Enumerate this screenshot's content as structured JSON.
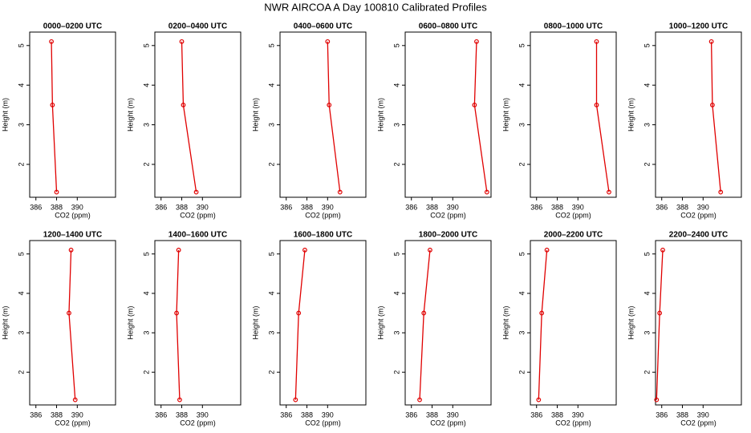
{
  "title": "NWR AIRCOA A  Day 100810  Calibrated Profiles",
  "chart_data": [
    {
      "type": "line",
      "title": "0000–0200 UTC",
      "xlabel": "CO2 (ppm)",
      "ylabel": "Height (m)",
      "color": "#e00000",
      "x": [
        387.5,
        387.6,
        388.0
      ],
      "values": [
        5.1,
        3.5,
        1.3
      ],
      "xlim": [
        385.4,
        393.7
      ],
      "ylim": [
        1.17,
        5.34
      ],
      "xticks": [
        386,
        388,
        390
      ],
      "yticks": [
        2,
        3,
        4,
        5
      ]
    },
    {
      "type": "line",
      "title": "0200–0400 UTC",
      "xlabel": "CO2 (ppm)",
      "ylabel": "Height (m)",
      "color": "#e00000",
      "x": [
        388.0,
        388.15,
        389.4
      ],
      "values": [
        5.1,
        3.5,
        1.3
      ],
      "xlim": [
        385.4,
        393.7
      ],
      "ylim": [
        1.17,
        5.34
      ],
      "xticks": [
        386,
        388,
        390
      ],
      "yticks": [
        2,
        3,
        4,
        5
      ]
    },
    {
      "type": "line",
      "title": "0400–0600 UTC",
      "xlabel": "CO2 (ppm)",
      "ylabel": "Height (m)",
      "color": "#e00000",
      "x": [
        390.0,
        390.15,
        391.2
      ],
      "values": [
        5.1,
        3.5,
        1.3
      ],
      "xlim": [
        385.4,
        393.7
      ],
      "ylim": [
        1.17,
        5.34
      ],
      "xticks": [
        386,
        388,
        390
      ],
      "yticks": [
        2,
        3,
        4,
        5
      ]
    },
    {
      "type": "line",
      "title": "0600–0800 UTC",
      "xlabel": "CO2 (ppm)",
      "ylabel": "Height (m)",
      "color": "#e00000",
      "x": [
        392.3,
        392.1,
        393.3
      ],
      "values": [
        5.1,
        3.5,
        1.3
      ],
      "xlim": [
        385.4,
        393.7
      ],
      "ylim": [
        1.17,
        5.34
      ],
      "xticks": [
        386,
        388,
        390
      ],
      "yticks": [
        2,
        3,
        4,
        5
      ]
    },
    {
      "type": "line",
      "title": "0800–1000 UTC",
      "xlabel": "CO2 (ppm)",
      "ylabel": "Height (m)",
      "color": "#e00000",
      "x": [
        391.8,
        391.8,
        393.0
      ],
      "values": [
        5.1,
        3.5,
        1.3
      ],
      "xlim": [
        385.4,
        393.7
      ],
      "ylim": [
        1.17,
        5.34
      ],
      "xticks": [
        386,
        388,
        390
      ],
      "yticks": [
        2,
        3,
        4,
        5
      ]
    },
    {
      "type": "line",
      "title": "1000–1200 UTC",
      "xlabel": "CO2 (ppm)",
      "ylabel": "Height (m)",
      "color": "#e00000",
      "x": [
        390.8,
        390.9,
        391.7
      ],
      "values": [
        5.1,
        3.5,
        1.3
      ],
      "xlim": [
        385.4,
        393.7
      ],
      "ylim": [
        1.17,
        5.34
      ],
      "xticks": [
        386,
        388,
        390
      ],
      "yticks": [
        2,
        3,
        4,
        5
      ]
    },
    {
      "type": "line",
      "title": "1200–1400 UTC",
      "xlabel": "CO2 (ppm)",
      "ylabel": "Height (m)",
      "color": "#e00000",
      "x": [
        389.4,
        389.2,
        389.8
      ],
      "values": [
        5.1,
        3.5,
        1.3
      ],
      "xlim": [
        385.4,
        393.7
      ],
      "ylim": [
        1.17,
        5.34
      ],
      "xticks": [
        386,
        388,
        390
      ],
      "yticks": [
        2,
        3,
        4,
        5
      ]
    },
    {
      "type": "line",
      "title": "1400–1600 UTC",
      "xlabel": "CO2 (ppm)",
      "ylabel": "Height (m)",
      "color": "#e00000",
      "x": [
        387.7,
        387.5,
        387.8
      ],
      "values": [
        5.1,
        3.5,
        1.3
      ],
      "xlim": [
        385.4,
        393.7
      ],
      "ylim": [
        1.17,
        5.34
      ],
      "xticks": [
        386,
        388,
        390
      ],
      "yticks": [
        2,
        3,
        4,
        5
      ]
    },
    {
      "type": "line",
      "title": "1600–1800 UTC",
      "xlabel": "CO2 (ppm)",
      "ylabel": "Height (m)",
      "color": "#e00000",
      "x": [
        387.8,
        387.2,
        386.9
      ],
      "values": [
        5.1,
        3.5,
        1.3
      ],
      "xlim": [
        385.4,
        393.7
      ],
      "ylim": [
        1.17,
        5.34
      ],
      "xticks": [
        386,
        388,
        390
      ],
      "yticks": [
        2,
        3,
        4,
        5
      ]
    },
    {
      "type": "line",
      "title": "1800–2000 UTC",
      "xlabel": "CO2 (ppm)",
      "ylabel": "Height (m)",
      "color": "#e00000",
      "x": [
        387.8,
        387.2,
        386.8
      ],
      "values": [
        5.1,
        3.5,
        1.3
      ],
      "xlim": [
        385.4,
        393.7
      ],
      "ylim": [
        1.17,
        5.34
      ],
      "xticks": [
        386,
        388,
        390
      ],
      "yticks": [
        2,
        3,
        4,
        5
      ]
    },
    {
      "type": "line",
      "title": "2000–2200 UTC",
      "xlabel": "CO2 (ppm)",
      "ylabel": "Height (m)",
      "color": "#e00000",
      "x": [
        387.0,
        386.5,
        386.2
      ],
      "values": [
        5.1,
        3.5,
        1.3
      ],
      "xlim": [
        385.4,
        393.7
      ],
      "ylim": [
        1.17,
        5.34
      ],
      "xticks": [
        386,
        388,
        390
      ],
      "yticks": [
        2,
        3,
        4,
        5
      ]
    },
    {
      "type": "line",
      "title": "2200–2400 UTC",
      "xlabel": "CO2 (ppm)",
      "ylabel": "Height (m)",
      "color": "#e00000",
      "x": [
        386.1,
        385.8,
        385.5
      ],
      "values": [
        5.1,
        3.5,
        1.3
      ],
      "xlim": [
        385.4,
        393.7
      ],
      "ylim": [
        1.17,
        5.34
      ],
      "xticks": [
        386,
        388,
        390
      ],
      "yticks": [
        2,
        3,
        4,
        5
      ]
    }
  ]
}
